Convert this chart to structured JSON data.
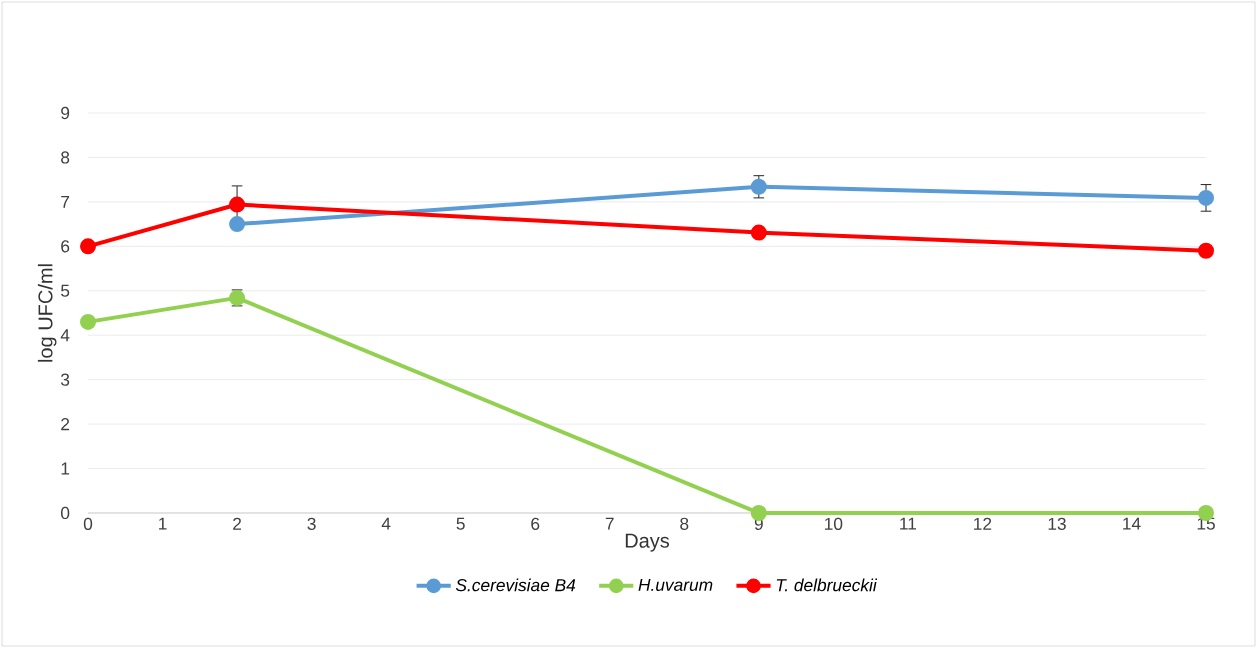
{
  "chart_data": {
    "type": "line",
    "xlabel": "Days",
    "ylabel": "log UFC/ml",
    "xlim": [
      0,
      15
    ],
    "ylim": [
      0,
      9
    ],
    "xticks": [
      0,
      1,
      2,
      3,
      4,
      5,
      6,
      7,
      8,
      9,
      10,
      11,
      12,
      13,
      14,
      15
    ],
    "yticks": [
      0,
      1,
      2,
      3,
      4,
      5,
      6,
      7,
      8,
      9
    ],
    "grid": "y",
    "legend": "bottom",
    "marker": "circle",
    "line_style": "solid",
    "series": [
      {
        "name": "S.cerevisiae B4",
        "color": "#5b9bd5",
        "x": [
          2,
          9,
          15
        ],
        "values": [
          6.5,
          7.34,
          7.09
        ],
        "errors": [
          null,
          0.25,
          0.3
        ]
      },
      {
        "name": "H.uvarum",
        "color": "#92d050",
        "x": [
          0,
          2,
          9,
          15
        ],
        "values": [
          4.3,
          4.84,
          0,
          0
        ],
        "errors": [
          null,
          0.18,
          null,
          null
        ]
      },
      {
        "name": "T. delbrueckii",
        "color": "#ff0000",
        "x": [
          0,
          2,
          9,
          15
        ],
        "values": [
          6.0,
          6.94,
          6.31,
          5.9
        ],
        "errors": [
          null,
          0.42,
          null,
          null
        ]
      }
    ]
  }
}
